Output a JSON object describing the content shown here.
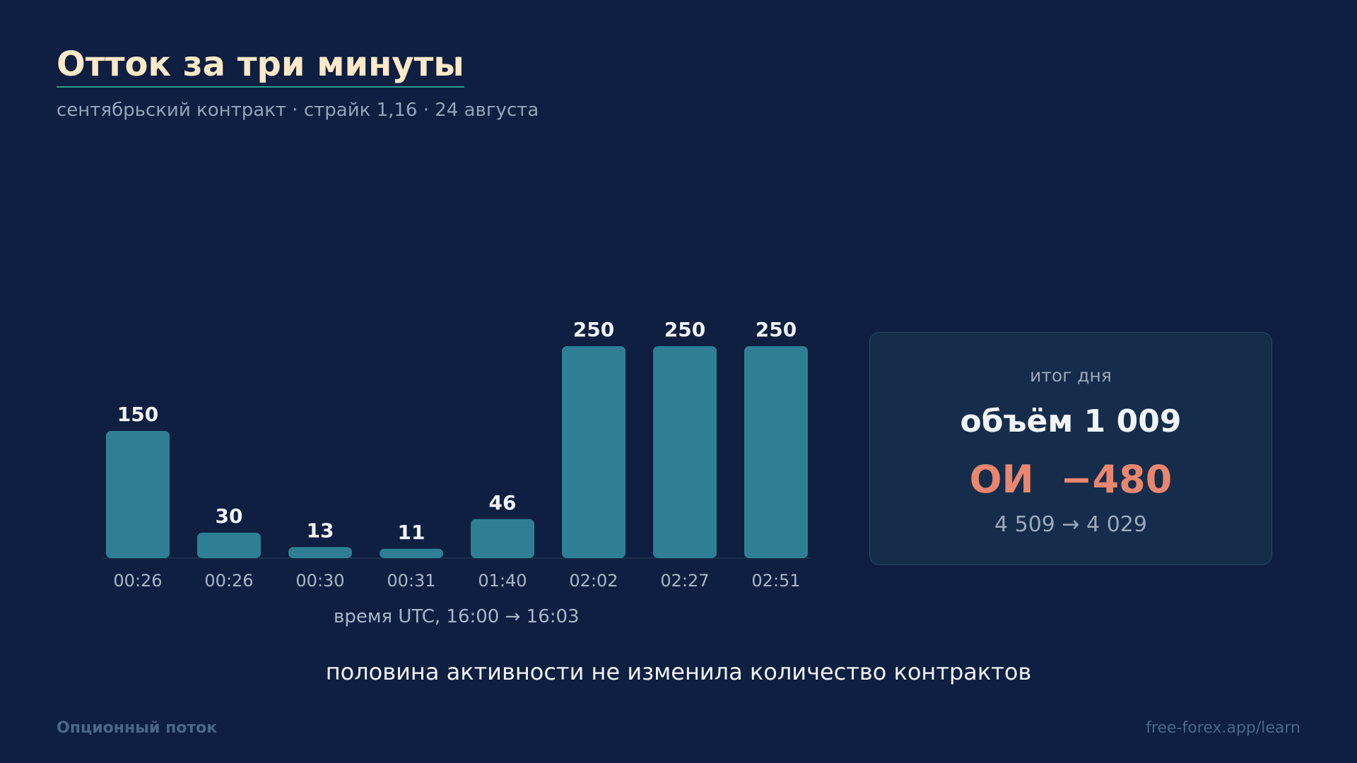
{
  "header": {
    "title": "Отток за три минуты",
    "subtitle": "сентябрьский контракт · страйк 1,16 · 24 августа"
  },
  "chart_data": {
    "type": "bar",
    "categories": [
      "00:26",
      "00:26",
      "00:30",
      "00:31",
      "01:40",
      "02:02",
      "02:27",
      "02:51"
    ],
    "values": [
      150,
      30,
      13,
      11,
      46,
      250,
      250,
      250
    ],
    "data_labels": [
      "150",
      "30",
      "13",
      "11",
      "46",
      "250",
      "250",
      "250"
    ],
    "title": "",
    "xlabel": "время UTC, 16:00 → 16:03",
    "ylabel": "",
    "ylim": [
      0,
      250
    ],
    "grid": false,
    "bar_color": "#2e7f93"
  },
  "summary_card": {
    "label": "итог дня",
    "volume": "объём 1 009",
    "oi": "ОИ  −480",
    "oi_range": "4 509 → 4 029",
    "oi_color": "#e9866f"
  },
  "conclusion": "половина активности не изменила количество контрактов",
  "footer": {
    "left": "Опционный поток",
    "right": "free-forex.app/learn"
  },
  "colors": {
    "background": "#0e1f41",
    "title": "#fde8c8",
    "accent": "#2a9d8f"
  }
}
